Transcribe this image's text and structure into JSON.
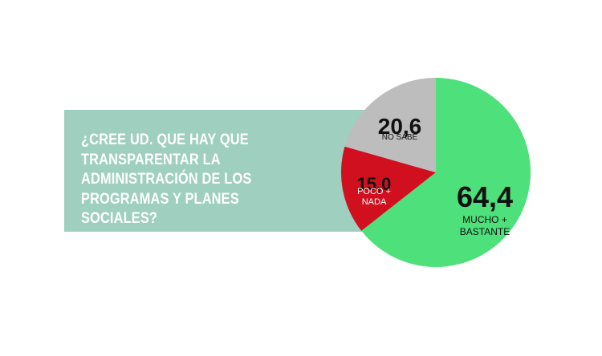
{
  "question": {
    "lines": [
      "¿CREE UD. QUE HAY QUE",
      "TRANSPARENTAR LA",
      "ADMINISTRACIÓN DE LOS",
      "PROGRAMAS Y PLANES SOCIALES?"
    ]
  },
  "colors": {
    "question_box": "#9fd0bf",
    "question_text": "#ffffff"
  },
  "chart_data": {
    "type": "pie",
    "title": "",
    "slices": [
      {
        "value": 64.4,
        "value_label": "64,4",
        "label_lines": [
          "MUCHO +",
          "BASTANTE"
        ],
        "color": "#4ee07a",
        "label_color": "#111111"
      },
      {
        "value": 15.0,
        "value_label": "15,0",
        "label_lines": [
          "POCO +",
          "NADA"
        ],
        "color": "#d0101e",
        "label_color": "#ffffff"
      },
      {
        "value": 20.6,
        "value_label": "20,6",
        "label_lines": [
          "NO SABE"
        ],
        "color": "#bdbdbd",
        "label_color": "#111111"
      }
    ],
    "start": "12 o'clock",
    "direction": "clockwise",
    "legend": "none"
  }
}
